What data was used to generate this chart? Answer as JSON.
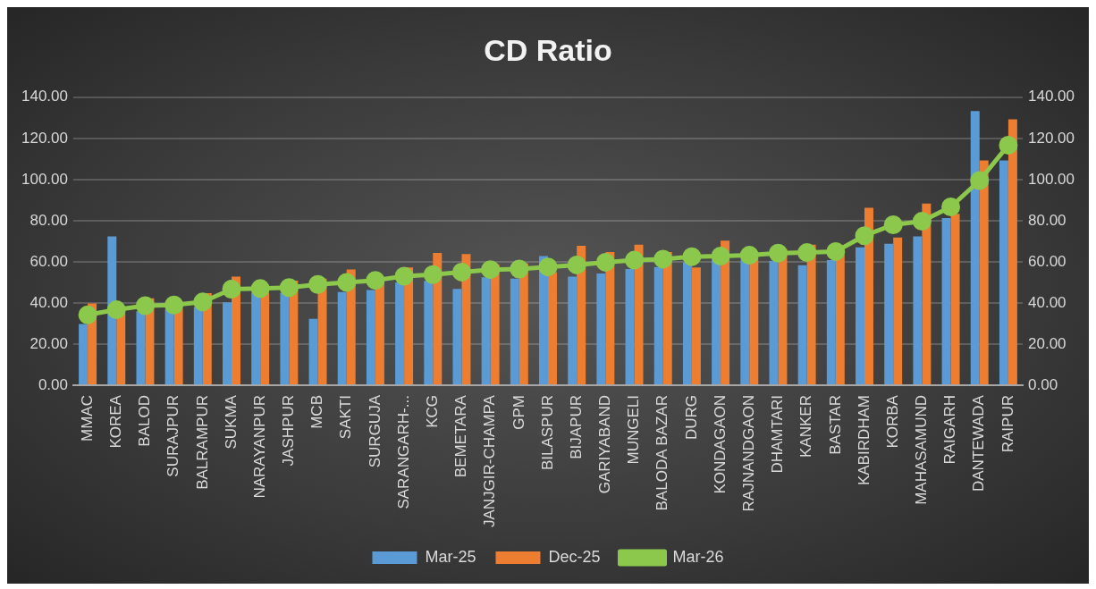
{
  "chart_data": {
    "type": "bar",
    "title": "CD Ratio",
    "categories": [
      "MMAC",
      "KOREA",
      "BALOD",
      "SURAJPUR",
      "BALRAMPUR",
      "SUKMA",
      "NARAYANPUR",
      "JASHPUR",
      "MCB",
      "SAKTI",
      "SURGUJA",
      "SARANGARH-...",
      "KCG",
      "BEMETARA",
      "JANJGIR-CHAMPA",
      "GPM",
      "BILASPUR",
      "BIJAPUR",
      "GARIYABAND",
      "MUNGELI",
      "BALODA BAZAR",
      "DURG",
      "KONDAGAON",
      "RAJNANDGAON",
      "DHAMTARI",
      "KANKER",
      "BASTAR",
      "KABIRDHAM",
      "KORBA",
      "MAHASAMUND",
      "RAIGARH",
      "DANTEWADA",
      "RAIPUR"
    ],
    "series": [
      {
        "name": "Mar-25",
        "color": "#5b9bd5",
        "values": [
          29.8,
          72.3,
          36,
          37,
          38,
          40.3,
          45,
          45,
          32.3,
          45.3,
          46.3,
          50,
          50.7,
          46.8,
          52.5,
          51.8,
          62.8,
          52.8,
          54.3,
          56.5,
          57.5,
          59.7,
          60.8,
          60.8,
          60.5,
          58.3,
          60.8,
          67,
          68.8,
          72.3,
          81.3,
          133.3,
          109.3
        ]
      },
      {
        "name": "Dec-25",
        "color": "#ed7d31",
        "values": [
          39.8,
          35,
          42.3,
          37.3,
          44.8,
          52.8,
          45,
          50.8,
          51.8,
          56.3,
          50,
          57.3,
          64.3,
          63.8,
          58.8,
          59.3,
          55,
          67.8,
          64.8,
          68.3,
          64.8,
          57.3,
          70.3,
          61.7,
          66.3,
          68.3,
          63.3,
          86.3,
          71.8,
          88.3,
          83.3,
          109.3,
          129.3
        ]
      },
      {
        "name": "Mar-26",
        "type": "line",
        "color": "#8cc84b",
        "values": [
          34.2,
          36.7,
          38.7,
          39,
          40.5,
          46.7,
          47,
          47.5,
          49,
          50,
          51,
          53,
          53.8,
          55,
          56.2,
          56.5,
          57.5,
          58.5,
          59.8,
          60.8,
          61.3,
          62.5,
          62.8,
          63.2,
          64.2,
          64.5,
          65,
          72.7,
          78,
          79.7,
          86.7,
          99.5,
          116.7
        ]
      }
    ],
    "ylim": [
      0,
      140
    ],
    "yticks": [
      {
        "value": 0,
        "label": "0.00"
      },
      {
        "value": 20,
        "label": "20.00"
      },
      {
        "value": 40,
        "label": "40.00"
      },
      {
        "value": 60,
        "label": "60.00"
      },
      {
        "value": 80,
        "label": "80.00"
      },
      {
        "value": 100,
        "label": "100.00"
      },
      {
        "value": 120,
        "label": "120.00"
      },
      {
        "value": 140,
        "label": "140.00"
      }
    ],
    "y2lim": [
      0,
      140
    ],
    "y2ticks": [
      {
        "value": 0,
        "label": "0.00"
      },
      {
        "value": 20,
        "label": "20.00"
      },
      {
        "value": 40,
        "label": "40.00"
      },
      {
        "value": 60,
        "label": "60.00"
      },
      {
        "value": 80,
        "label": "80.00"
      },
      {
        "value": 100,
        "label": "100.00"
      },
      {
        "value": 120,
        "label": "120.00"
      },
      {
        "value": 140,
        "label": "140.00"
      }
    ],
    "grid": "y",
    "legend": "bottom",
    "marker": "circle",
    "line_style": "solid"
  }
}
